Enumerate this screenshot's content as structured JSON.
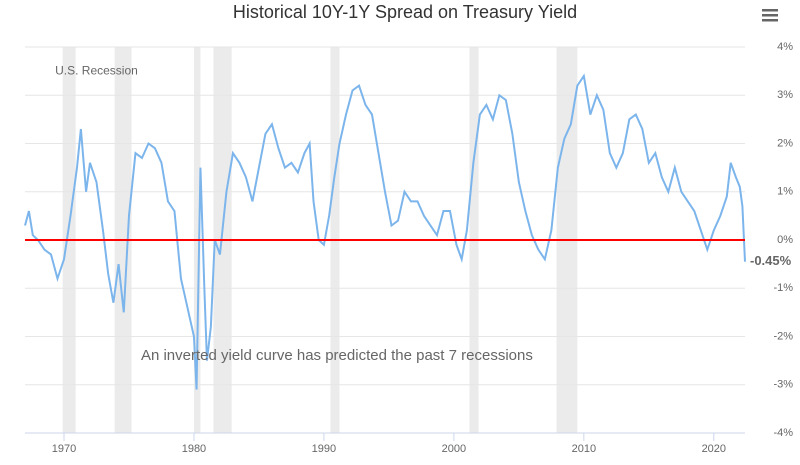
{
  "chart_data": {
    "type": "line",
    "title": "Historical 10Y-1Y Spread on Treasury Yield",
    "annotations": [
      {
        "text": "U.S. Recession",
        "x": 1972.5,
        "y": 3.5,
        "color": "#e0201a"
      },
      {
        "text": "An inverted yield curve has predicted the past 7 recessions",
        "x": 1991,
        "y": -2.4,
        "color": "#e0201a"
      }
    ],
    "recessions": [
      [
        1969.9,
        1970.9
      ],
      [
        1973.9,
        1975.2
      ],
      [
        1980.0,
        1980.5
      ],
      [
        1981.5,
        1982.9
      ],
      [
        1990.5,
        1991.2
      ],
      [
        2001.2,
        2001.9
      ],
      [
        2007.9,
        2009.5
      ]
    ],
    "recession_color": "#ebebeb",
    "reference_line": {
      "value": 0,
      "color": "#ff0000"
    },
    "end_label": {
      "value": -0.45,
      "label": "-0.45%"
    },
    "xlim": [
      1967,
      2022.4
    ],
    "xticks": [
      1970,
      1980,
      1990,
      2000,
      2010,
      2020
    ],
    "ylim": [
      -4,
      4
    ],
    "yticks": [
      {
        "value": -4,
        "label": "-4%"
      },
      {
        "value": -3,
        "label": "-3%"
      },
      {
        "value": -2,
        "label": "-2%"
      },
      {
        "value": -1,
        "label": "-1%"
      },
      {
        "value": 0,
        "label": "0%"
      },
      {
        "value": 1,
        "label": "1%"
      },
      {
        "value": 2,
        "label": "2%"
      },
      {
        "value": 3,
        "label": "3%"
      },
      {
        "value": 4,
        "label": "4%"
      }
    ],
    "grid": true,
    "series": [
      {
        "color": "#7cb5ec",
        "x": [
          1967.0,
          1967.3,
          1967.6,
          1968.0,
          1968.5,
          1969.0,
          1969.5,
          1970.0,
          1970.5,
          1971.0,
          1971.3,
          1971.7,
          1972.0,
          1972.5,
          1973.0,
          1973.4,
          1973.8,
          1974.2,
          1974.6,
          1975.0,
          1975.5,
          1976.0,
          1976.5,
          1977.0,
          1977.5,
          1978.0,
          1978.5,
          1979.0,
          1979.5,
          1980.0,
          1980.2,
          1980.5,
          1980.8,
          1981.0,
          1981.3,
          1981.6,
          1982.0,
          1982.5,
          1983.0,
          1983.5,
          1984.0,
          1984.5,
          1985.0,
          1985.5,
          1986.0,
          1986.5,
          1987.0,
          1987.5,
          1988.0,
          1988.5,
          1988.9,
          1989.2,
          1989.6,
          1990.0,
          1990.4,
          1990.8,
          1991.2,
          1991.7,
          1992.2,
          1992.7,
          1993.2,
          1993.7,
          1994.2,
          1994.7,
          1995.2,
          1995.7,
          1996.2,
          1996.7,
          1997.2,
          1997.7,
          1998.2,
          1998.7,
          1999.2,
          1999.7,
          2000.2,
          2000.6,
          2001.0,
          2001.5,
          2002.0,
          2002.5,
          2003.0,
          2003.5,
          2004.0,
          2004.5,
          2005.0,
          2005.5,
          2006.0,
          2006.5,
          2007.0,
          2007.5,
          2008.0,
          2008.5,
          2009.0,
          2009.5,
          2010.0,
          2010.5,
          2011.0,
          2011.5,
          2012.0,
          2012.5,
          2013.0,
          2013.5,
          2014.0,
          2014.5,
          2015.0,
          2015.5,
          2016.0,
          2016.5,
          2017.0,
          2017.5,
          2018.0,
          2018.5,
          2019.0,
          2019.5,
          2020.0,
          2020.5,
          2021.0,
          2021.3,
          2021.7,
          2022.0,
          2022.2,
          2022.4
        ],
        "values": [
          0.3,
          0.6,
          0.1,
          0.0,
          -0.2,
          -0.3,
          -0.8,
          -0.4,
          0.5,
          1.5,
          2.3,
          1.0,
          1.6,
          1.2,
          0.2,
          -0.7,
          -1.3,
          -0.5,
          -1.5,
          0.5,
          1.8,
          1.7,
          2.0,
          1.9,
          1.6,
          0.8,
          0.6,
          -0.8,
          -1.4,
          -2.0,
          -3.1,
          1.5,
          -1.0,
          -2.5,
          -1.8,
          0.0,
          -0.3,
          1.0,
          1.8,
          1.6,
          1.3,
          0.8,
          1.5,
          2.2,
          2.4,
          1.9,
          1.5,
          1.6,
          1.4,
          1.8,
          2.0,
          0.8,
          0.0,
          -0.1,
          0.5,
          1.3,
          2.0,
          2.6,
          3.1,
          3.2,
          2.8,
          2.6,
          1.8,
          1.0,
          0.3,
          0.4,
          1.0,
          0.8,
          0.8,
          0.5,
          0.3,
          0.1,
          0.6,
          0.6,
          -0.1,
          -0.4,
          0.2,
          1.6,
          2.6,
          2.8,
          2.5,
          3.0,
          2.9,
          2.2,
          1.2,
          0.6,
          0.1,
          -0.2,
          -0.4,
          0.2,
          1.5,
          2.1,
          2.4,
          3.2,
          3.4,
          2.6,
          3.0,
          2.7,
          1.8,
          1.5,
          1.8,
          2.5,
          2.6,
          2.3,
          1.6,
          1.8,
          1.3,
          1.0,
          1.5,
          1.0,
          0.8,
          0.6,
          0.2,
          -0.2,
          0.2,
          0.5,
          0.9,
          1.6,
          1.3,
          1.1,
          0.7,
          -0.45
        ]
      }
    ]
  }
}
